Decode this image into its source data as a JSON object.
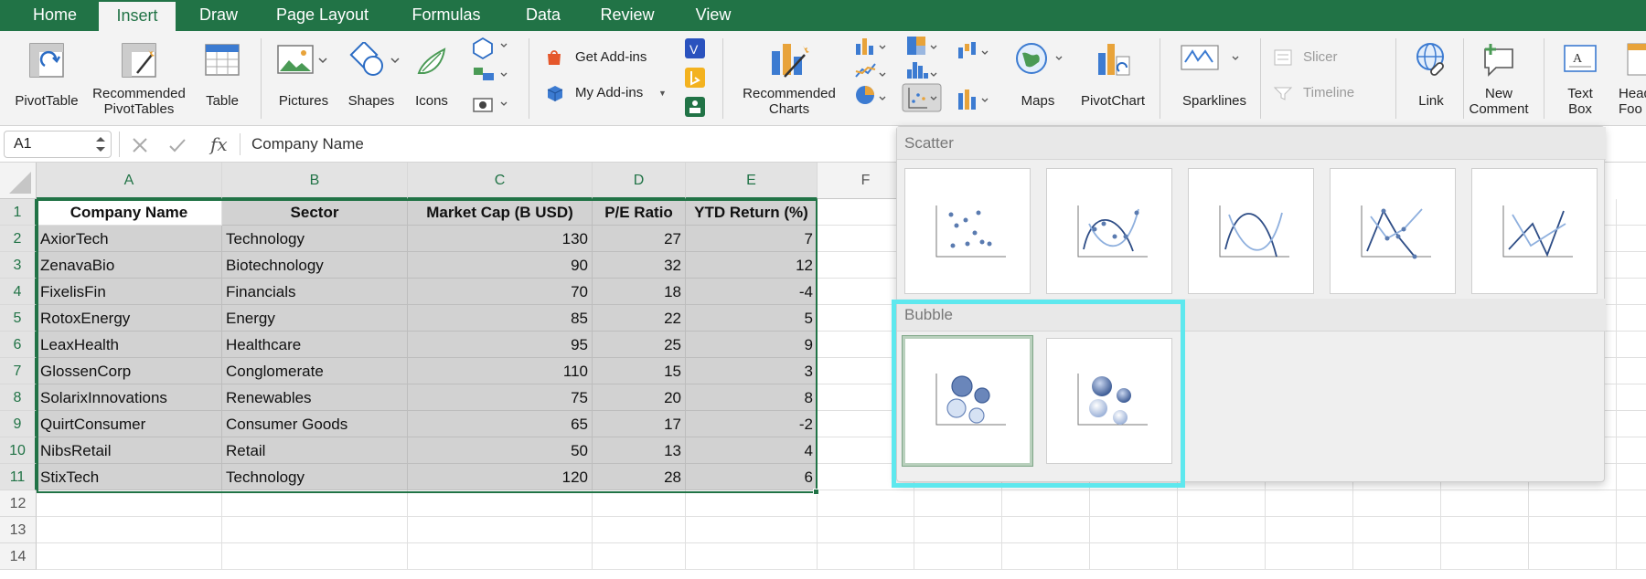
{
  "tabs": [
    "Home",
    "Insert",
    "Draw",
    "Page Layout",
    "Formulas",
    "Data",
    "Review",
    "View"
  ],
  "active_tab": "Insert",
  "ribbon": {
    "pivottable": "PivotTable",
    "recommended_pivottables_line1": "Recommended",
    "recommended_pivottables_line2": "PivotTables",
    "table": "Table",
    "pictures": "Pictures",
    "shapes": "Shapes",
    "icons": "Icons",
    "get_addins": "Get Add-ins",
    "my_addins": "My Add-ins",
    "recommended_charts_line1": "Recommended",
    "recommended_charts_line2": "Charts",
    "maps": "Maps",
    "pivotchart": "PivotChart",
    "sparklines": "Sparklines",
    "slicer": "Slicer",
    "timeline": "Timeline",
    "link": "Link",
    "new_comment_line1": "New",
    "new_comment_line2": "Comment",
    "text_box_line1": "Text",
    "text_box_line2": "Box",
    "header_footer_line1": "Head",
    "header_footer_line2": "Foo"
  },
  "formula_bar": {
    "name_box": "A1",
    "fx": "fx",
    "formula": "Company Name"
  },
  "columns": [
    "A",
    "B",
    "C",
    "D",
    "E",
    "F"
  ],
  "rows": [
    "1",
    "2",
    "3",
    "4",
    "5",
    "6",
    "7",
    "8",
    "9",
    "10",
    "11",
    "12",
    "13",
    "14"
  ],
  "table": {
    "headers": [
      "Company Name",
      "Sector",
      "Market Cap (B USD)",
      "P/E Ratio",
      "YTD Return (%)"
    ],
    "data": [
      [
        "AxiorTech",
        "Technology",
        "130",
        "27",
        "7"
      ],
      [
        "ZenavaBio",
        "Biotechnology",
        "90",
        "32",
        "12"
      ],
      [
        "FixelisFin",
        "Financials",
        "70",
        "18",
        "-4"
      ],
      [
        "RotoxEnergy",
        "Energy",
        "85",
        "22",
        "5"
      ],
      [
        "LeaxHealth",
        "Healthcare",
        "95",
        "25",
        "9"
      ],
      [
        "GlossenCorp",
        "Conglomerate",
        "110",
        "15",
        "3"
      ],
      [
        "SolarixInnovations",
        "Renewables",
        "75",
        "20",
        "8"
      ],
      [
        "QuirtConsumer",
        "Consumer Goods",
        "65",
        "17",
        "-2"
      ],
      [
        "NibsRetail",
        "Retail",
        "50",
        "13",
        "4"
      ],
      [
        "StixTech",
        "Technology",
        "120",
        "28",
        "6"
      ]
    ]
  },
  "dropdown": {
    "scatter_label": "Scatter",
    "bubble_label": "Bubble",
    "scatter_options": [
      "scatter",
      "scatter-smooth-lines-markers",
      "scatter-smooth-lines",
      "scatter-straight-lines-markers",
      "scatter-straight-lines"
    ],
    "bubble_options": [
      "bubble",
      "3d-bubble"
    ],
    "selected": "bubble"
  },
  "colors": {
    "accent": "#217346",
    "highlight": "#5ee8ee",
    "selection_fill": "#d2d2d2"
  }
}
